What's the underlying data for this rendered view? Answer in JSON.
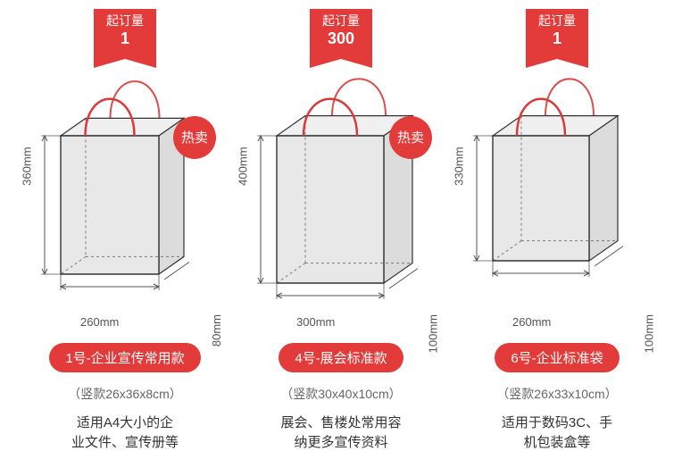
{
  "colors": {
    "accent": "#e23b3a",
    "bag_stroke": "#333333",
    "bag_fill": "#e8e8e8",
    "handle": "#d93a39",
    "gray_face": "#dcdcdc",
    "text_dim": "#555555",
    "background": "#ffffff"
  },
  "bags": [
    {
      "ribbon_label": "起订量",
      "ribbon_value": "1",
      "hot_badge": "热卖",
      "has_hot": true,
      "height_label": "360mm",
      "width_label": "260mm",
      "depth_label": "80mm",
      "title": "1号-企业宣传常用款",
      "subtitle": "（竖款26x36x8cm）",
      "desc_line1": "适用A4大小的企",
      "desc_line2": "业文件、宣传册等",
      "bag_geom": {
        "front_w": 110,
        "front_h": 155,
        "depth": 28
      }
    },
    {
      "ribbon_label": "起订量",
      "ribbon_value": "300",
      "hot_badge": "热卖",
      "has_hot": true,
      "height_label": "400mm",
      "width_label": "300mm",
      "depth_label": "100mm",
      "title": "4号-展会标准款",
      "subtitle": "（竖款30x40x10cm）",
      "desc_line1": "展会、售楼处常用容",
      "desc_line2": "纳更多宣传资料",
      "bag_geom": {
        "front_w": 120,
        "front_h": 165,
        "depth": 32
      }
    },
    {
      "ribbon_label": "起订量",
      "ribbon_value": "1",
      "hot_badge": "",
      "has_hot": false,
      "height_label": "330mm",
      "width_label": "260mm",
      "depth_label": "100mm",
      "title": "6号-企业标准袋",
      "subtitle": "（竖款26x33x10cm）",
      "desc_line1": "适用于数码3C、手",
      "desc_line2": "机包装盒等",
      "bag_geom": {
        "front_w": 108,
        "front_h": 140,
        "depth": 32
      }
    }
  ]
}
